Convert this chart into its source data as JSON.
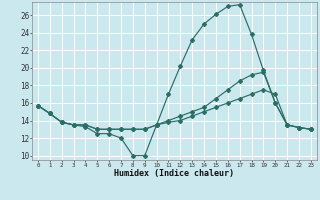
{
  "xlabel": "Humidex (Indice chaleur)",
  "ylabel": "",
  "background_color": "#cce8ef",
  "grid_color": "#ffffff",
  "line_color": "#2a6e65",
  "xlim": [
    -0.5,
    23.5
  ],
  "ylim": [
    9.5,
    27.5
  ],
  "xticks": [
    0,
    1,
    2,
    3,
    4,
    5,
    6,
    7,
    8,
    9,
    10,
    11,
    12,
    13,
    14,
    15,
    16,
    17,
    18,
    19,
    20,
    21,
    22,
    23
  ],
  "yticks": [
    10,
    12,
    14,
    16,
    18,
    20,
    22,
    24,
    26
  ],
  "series": [
    [
      15.7,
      14.8,
      13.8,
      13.5,
      13.3,
      12.5,
      12.5,
      12.0,
      10.0,
      10.0,
      13.5,
      17.0,
      20.2,
      23.2,
      25.0,
      26.1,
      27.0,
      27.2,
      23.8,
      19.7,
      16.0,
      13.5,
      13.2,
      13.0
    ],
    [
      15.7,
      14.8,
      13.8,
      13.5,
      13.5,
      13.0,
      13.0,
      13.0,
      13.0,
      13.0,
      13.5,
      14.0,
      14.5,
      15.0,
      15.5,
      16.5,
      17.5,
      18.5,
      19.2,
      19.5,
      16.0,
      13.5,
      13.2,
      13.0
    ],
    [
      15.7,
      14.8,
      13.8,
      13.5,
      13.5,
      13.0,
      13.0,
      13.0,
      13.0,
      13.0,
      13.5,
      13.8,
      14.0,
      14.5,
      15.0,
      15.5,
      16.0,
      16.5,
      17.0,
      17.5,
      17.0,
      13.5,
      13.2,
      13.0
    ]
  ]
}
